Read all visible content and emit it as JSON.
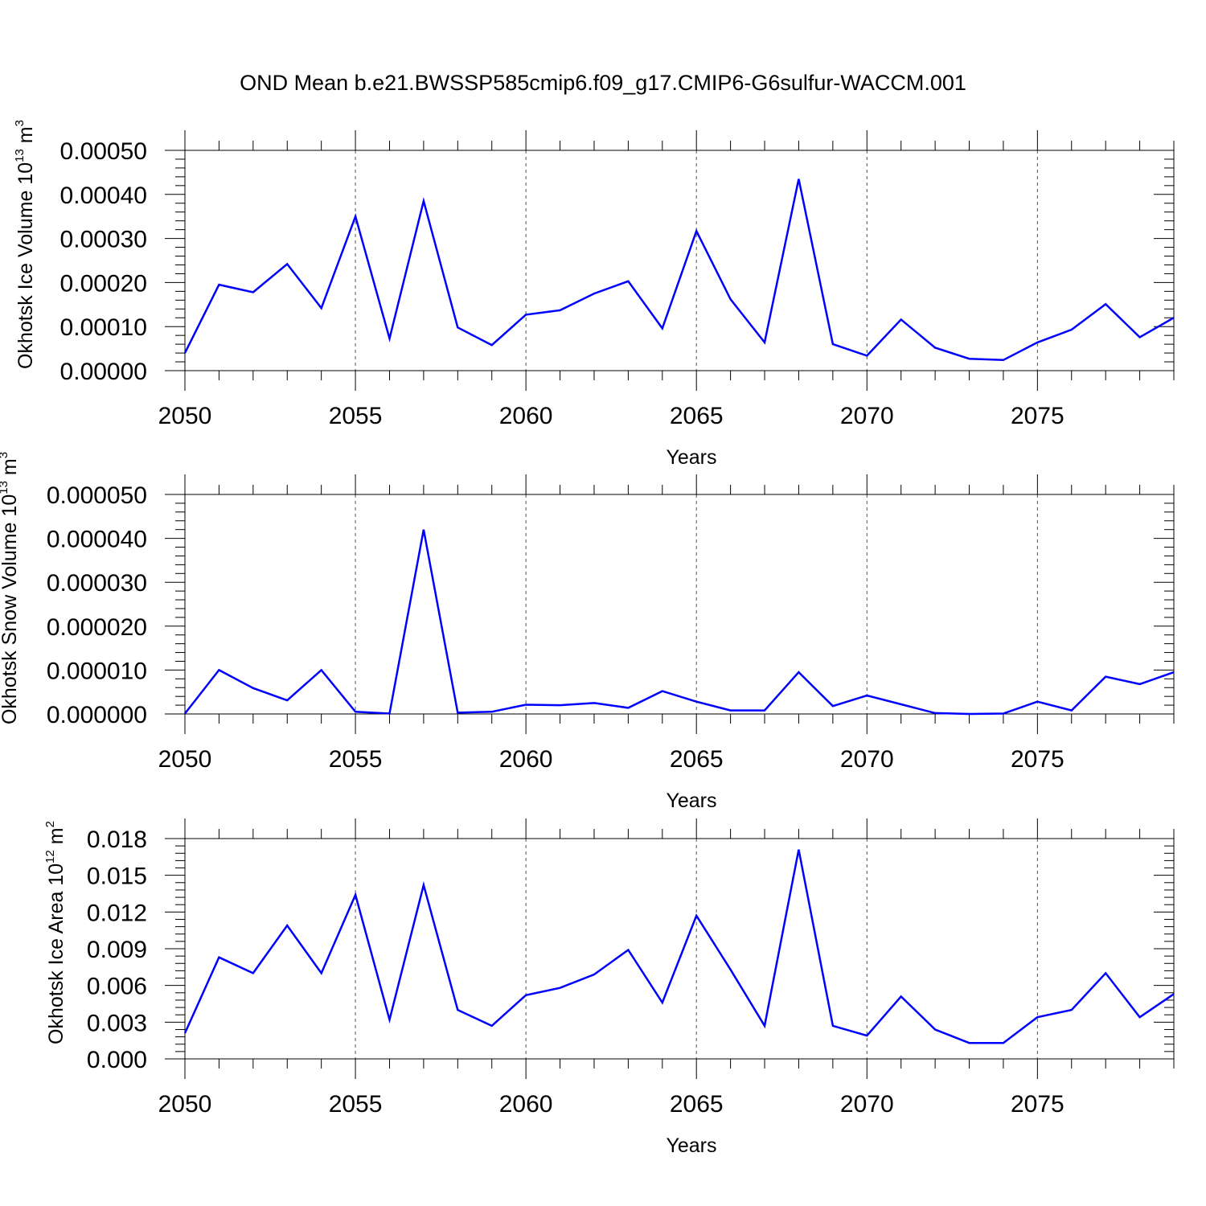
{
  "chart_data": {
    "title": "OND Mean b.e21.BWSSP585cmip6.f09_g17.CMIP6-G6sulfur-WACCM.001",
    "type": "line",
    "color": "#0000ff",
    "years": [
      2050,
      2051,
      2052,
      2053,
      2054,
      2055,
      2056,
      2057,
      2058,
      2059,
      2060,
      2061,
      2062,
      2063,
      2064,
      2065,
      2066,
      2067,
      2068,
      2069,
      2070,
      2071,
      2072,
      2073,
      2074,
      2075,
      2076,
      2077,
      2078,
      2079
    ],
    "xlim": [
      2050,
      2079
    ],
    "xticks": [
      2050,
      2055,
      2060,
      2065,
      2070,
      2075
    ],
    "xtick_labels": [
      "2050",
      "2055",
      "2060",
      "2065",
      "2070",
      "2075"
    ],
    "panels": [
      {
        "name": "ice-volume",
        "xlabel": "Years",
        "ylabel": "Okhotsk Ice Volume 10",
        "ylabel_sup": "13",
        "ylabel_unit": " m",
        "ylabel_unit_sup": "3",
        "ylim": [
          0,
          0.0005
        ],
        "yticks": [
          0,
          0.0001,
          0.0002,
          0.0003,
          0.0004,
          0.0005
        ],
        "ytick_labels": [
          "0.00000",
          "0.00010",
          "0.00020",
          "0.00030",
          "0.00040",
          "0.00050"
        ],
        "values": [
          4e-05,
          0.000195,
          0.000178,
          0.000242,
          0.000142,
          0.00035,
          7.3e-05,
          0.000385,
          9.8e-05,
          5.8e-05,
          0.000127,
          0.000137,
          0.000175,
          0.000203,
          9.6e-05,
          0.000317,
          0.000162,
          6.4e-05,
          0.000435,
          6e-05,
          3.4e-05,
          0.000116,
          5.2e-05,
          2.7e-05,
          2.4e-05,
          6.4e-05,
          9.3e-05,
          0.000151,
          7.6e-05,
          0.00012
        ]
      },
      {
        "name": "snow-volume",
        "xlabel": "Years",
        "ylabel": "Okhotsk Snow Volume 10",
        "ylabel_sup": "13",
        "ylabel_unit": " m",
        "ylabel_unit_sup": "3",
        "ylim": [
          0,
          5e-05
        ],
        "yticks": [
          0,
          1e-05,
          2e-05,
          3e-05,
          4e-05,
          5e-05
        ],
        "ytick_labels": [
          "0.000000",
          "0.000010",
          "0.000020",
          "0.000030",
          "0.000040",
          "0.000050"
        ],
        "values": [
          1e-07,
          1e-05,
          5.9e-06,
          3.1e-06,
          1e-05,
          5e-07,
          1e-07,
          4.2e-05,
          3e-07,
          5e-07,
          2.1e-06,
          2e-06,
          2.5e-06,
          1.4e-06,
          5.2e-06,
          2.8e-06,
          8e-07,
          8e-07,
          9.5e-06,
          1.8e-06,
          4.2e-06,
          2.2e-06,
          2e-07,
          0.0,
          1e-07,
          2.8e-06,
          8e-07,
          8.5e-06,
          6.8e-06,
          9.5e-06
        ]
      },
      {
        "name": "ice-area",
        "xlabel": "Years",
        "ylabel": "Okhotsk Ice Area 10",
        "ylabel_sup": "12",
        "ylabel_unit": " m",
        "ylabel_unit_sup": "2",
        "ylim": [
          0,
          0.018
        ],
        "yticks": [
          0,
          0.003,
          0.006,
          0.009,
          0.012,
          0.015,
          0.018
        ],
        "ytick_labels": [
          "0.000",
          "0.003",
          "0.006",
          "0.009",
          "0.012",
          "0.015",
          "0.018"
        ],
        "values": [
          0.0021,
          0.0083,
          0.007,
          0.0109,
          0.007,
          0.0134,
          0.0032,
          0.0142,
          0.004,
          0.0027,
          0.0052,
          0.0058,
          0.0069,
          0.0089,
          0.0046,
          0.0117,
          0.0073,
          0.0027,
          0.0171,
          0.0027,
          0.0019,
          0.0051,
          0.0024,
          0.0013,
          0.0013,
          0.0034,
          0.004,
          0.007,
          0.0034,
          0.0053
        ]
      }
    ]
  }
}
